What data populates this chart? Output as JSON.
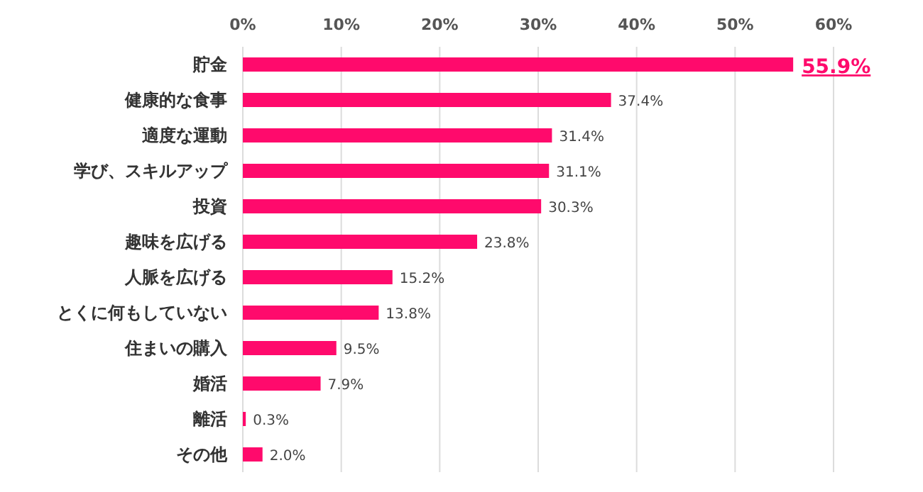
{
  "chart_data": {
    "type": "bar",
    "orientation": "horizontal",
    "categories": [
      "貯金",
      "健康的な食事",
      "適度な運動",
      "学び、スキルアップ",
      "投資",
      "趣味を広げる",
      "人脈を広げる",
      "とくに何もしていない",
      "住まいの購入",
      "婚活",
      "離活",
      "その他"
    ],
    "values": [
      55.9,
      37.4,
      31.4,
      31.1,
      30.3,
      23.8,
      15.2,
      13.8,
      9.5,
      7.9,
      0.3,
      2.0
    ],
    "value_labels": [
      "55.9%",
      "37.4%",
      "31.4%",
      "31.1%",
      "30.3%",
      "23.8%",
      "15.2%",
      "13.8%",
      "9.5%",
      "7.9%",
      "0.3%",
      "2.0%"
    ],
    "color": "#ff0a6c",
    "xlim": [
      0,
      60
    ],
    "xticks": [
      {
        "value": 0,
        "label": "0%"
      },
      {
        "value": 10,
        "label": "10%"
      },
      {
        "value": 20,
        "label": "20%"
      },
      {
        "value": 30,
        "label": "30%"
      },
      {
        "value": 40,
        "label": "40%"
      },
      {
        "value": 50,
        "label": "50%"
      },
      {
        "value": 60,
        "label": "60%"
      }
    ],
    "grid": "x"
  }
}
